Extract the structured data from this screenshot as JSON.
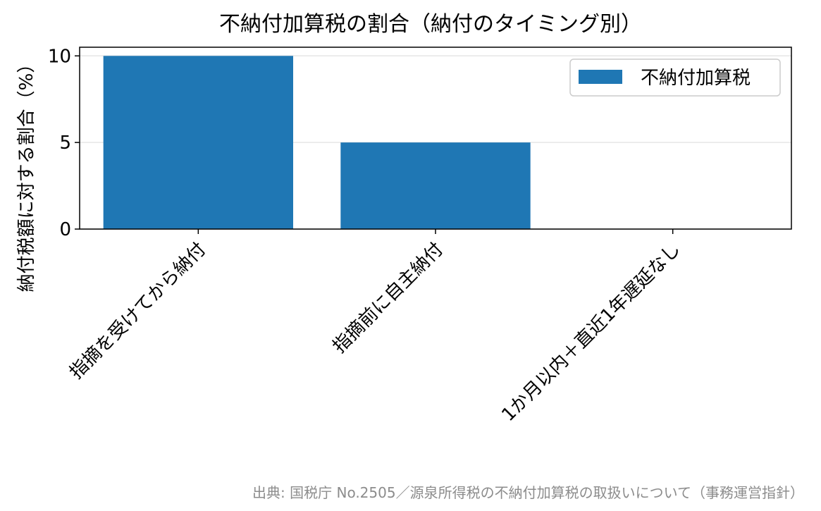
{
  "chart_data": {
    "type": "bar",
    "title": "不納付加算税の割合（納付のタイミング別）",
    "xlabel": "",
    "ylabel": "納付税額に対する割合（%）",
    "categories": [
      "指摘を受けてから納付",
      "指摘前に自主納付",
      "1か月以内＋直近1年遅延なし"
    ],
    "series": [
      {
        "name": "不納付加算税",
        "values": [
          10,
          5,
          0
        ]
      }
    ],
    "ylim": [
      0,
      10.5
    ],
    "yticks": [
      0,
      5,
      10
    ],
    "grid": "y",
    "legend": "top-right",
    "colors": {
      "bar": "#1f77b4"
    }
  },
  "source_note": "出典: 国税庁 No.2505／源泉所得税の不納付加算税の取扱いについて（事務運営指針）"
}
